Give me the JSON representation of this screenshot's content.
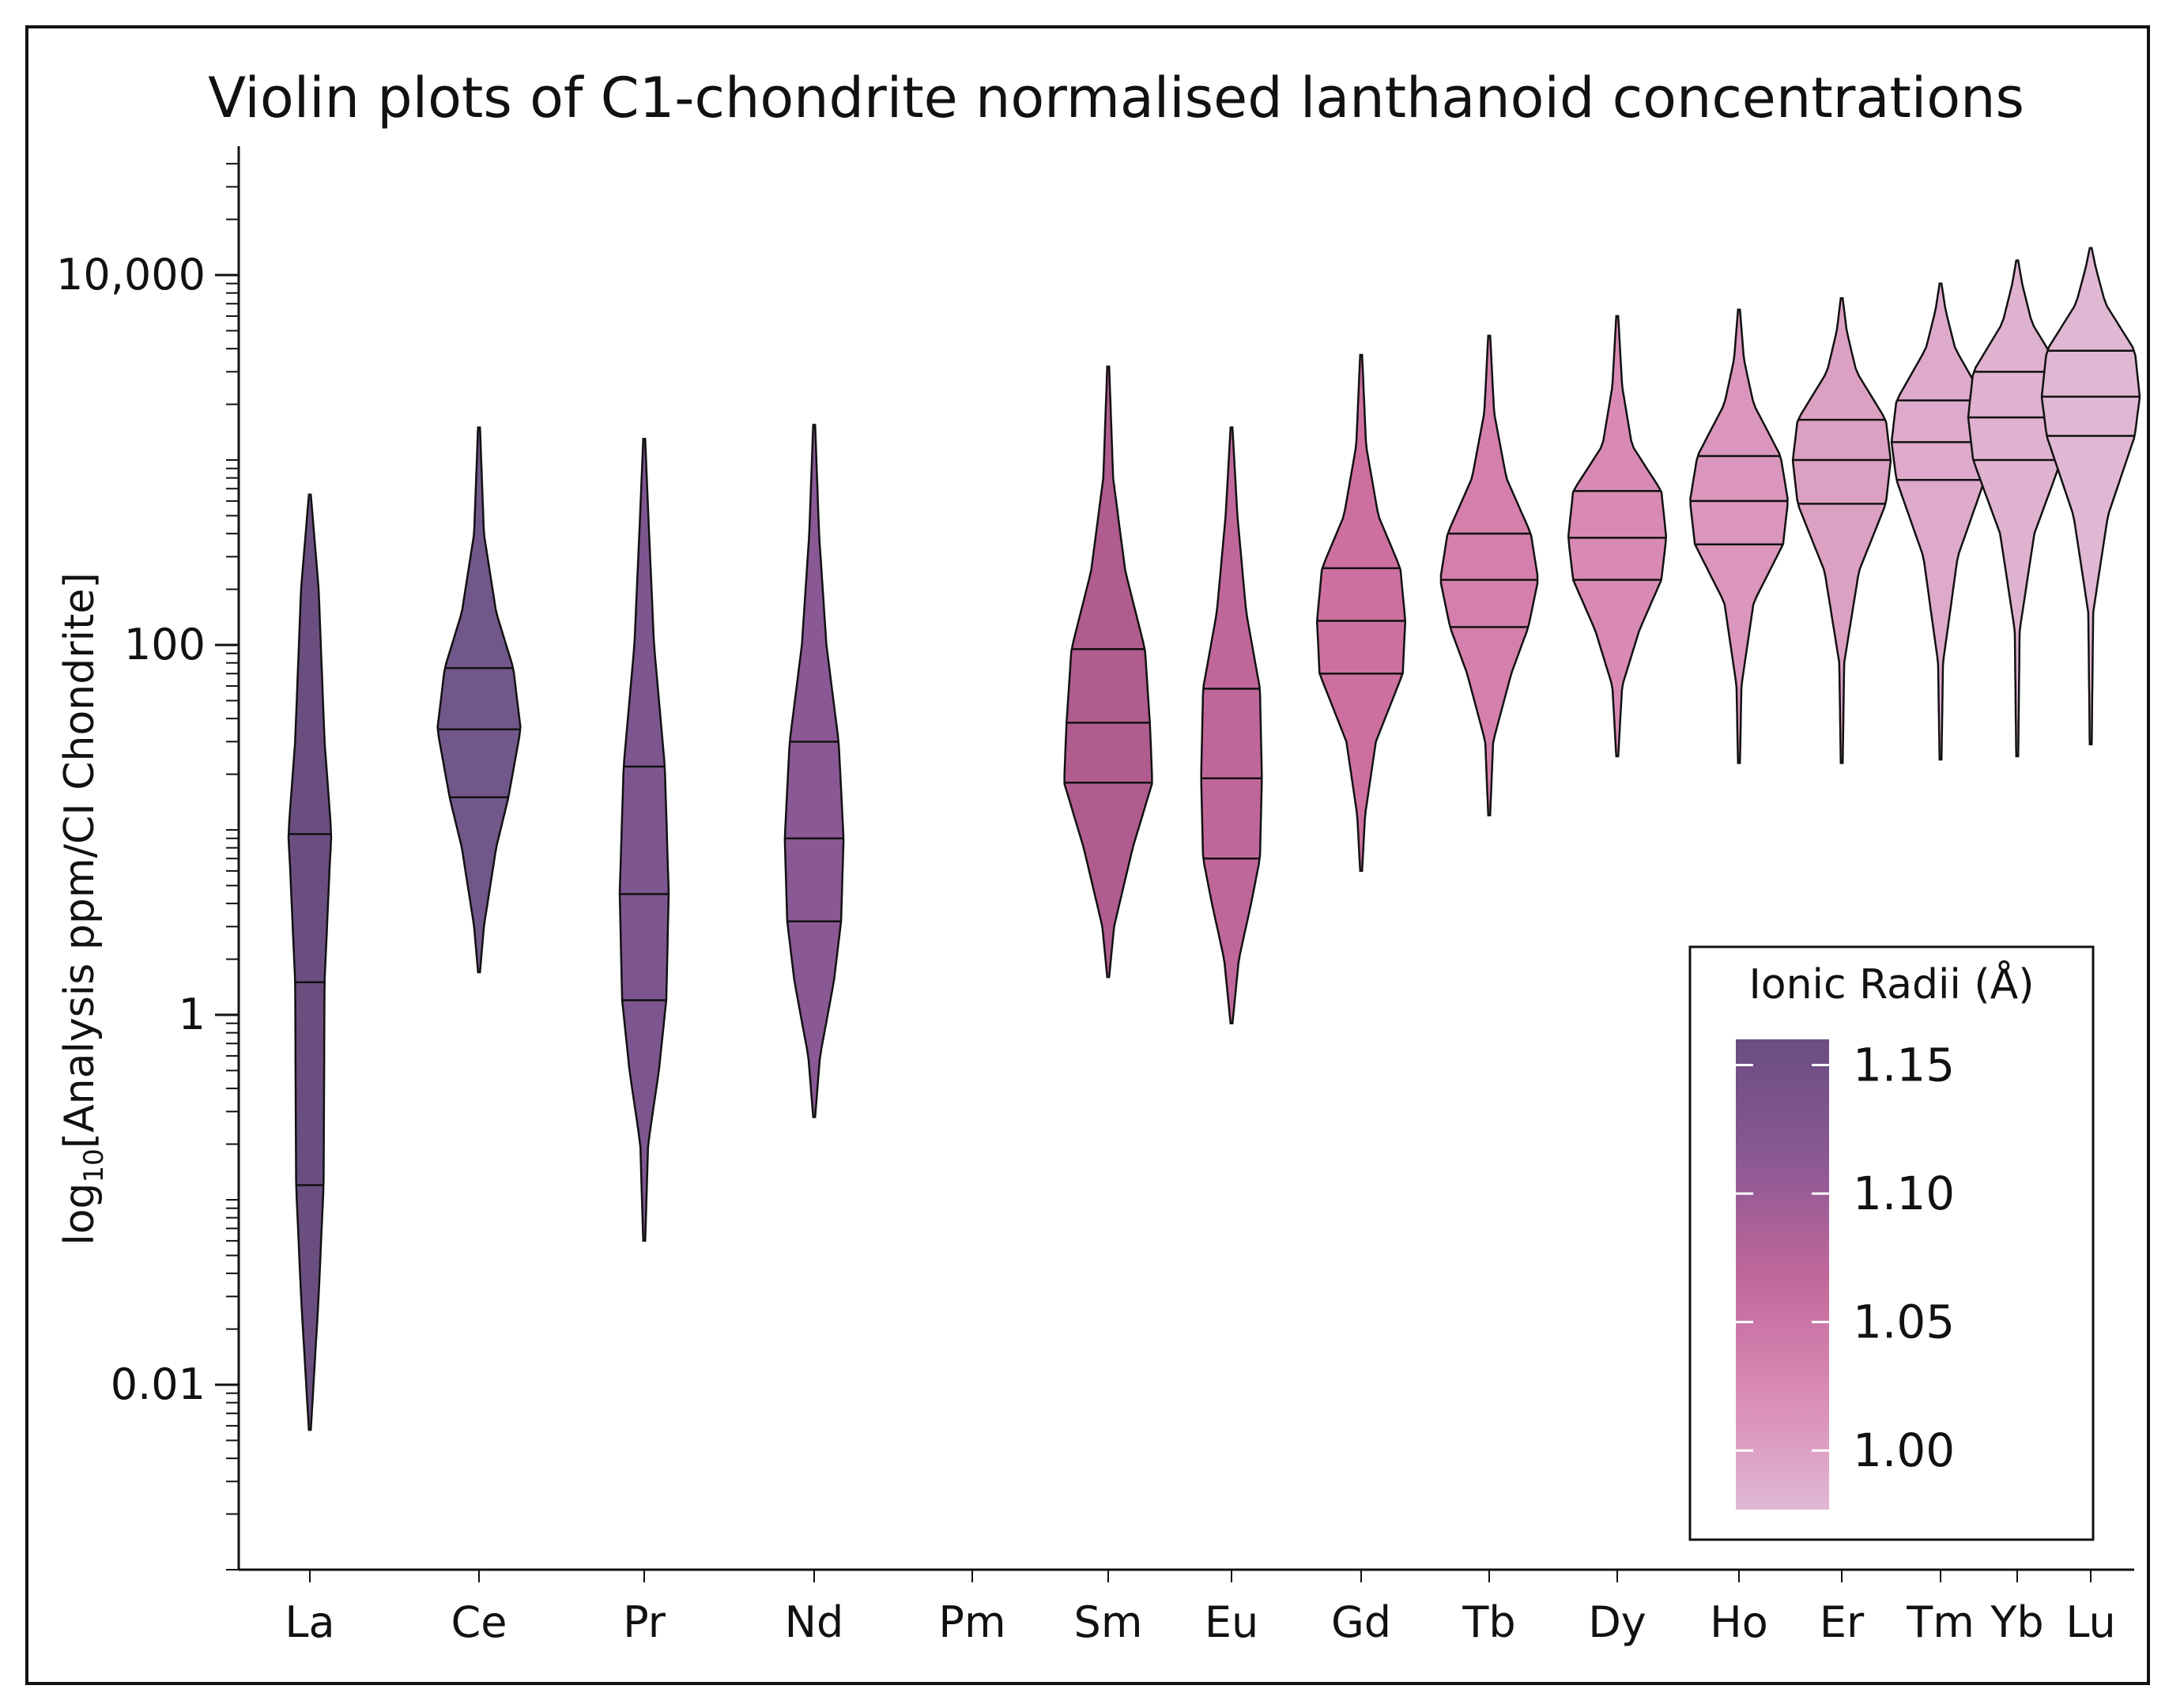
{
  "chart_data": {
    "type": "violin",
    "title": "Violin plots of C1-chondrite normalised lanthanoid concentrations",
    "ylabel_prefix": "log",
    "ylabel_subscript": "10",
    "ylabel_main": "[Analysis ppm/CI Chondrite]",
    "xlabel": "",
    "yscale": "log10",
    "ylim": [
      0.0008,
      50000
    ],
    "yticks": [
      {
        "value": 0.01,
        "label": "0.01"
      },
      {
        "value": 1,
        "label": "1"
      },
      {
        "value": 100,
        "label": "100"
      },
      {
        "value": 10000,
        "label": "10,000"
      }
    ],
    "categories": [
      "La",
      "Ce",
      "Pr",
      "Nd",
      "Pm",
      "Sm",
      "Eu",
      "Gd",
      "Tb",
      "Dy",
      "Ho",
      "Er",
      "Tm",
      "Yb",
      "Lu"
    ],
    "violins": [
      {
        "element": "La",
        "ionic_radius": 1.16,
        "color": "#6a4e80",
        "min": 0.0057,
        "max": 650,
        "q1": 0.12,
        "median": 1.5,
        "q3": 9.5,
        "shape": [
          [
            0.0057,
            0.02
          ],
          [
            0.03,
            0.18
          ],
          [
            0.12,
            0.28
          ],
          [
            1.5,
            0.3
          ],
          [
            6,
            0.4
          ],
          [
            9.5,
            0.44
          ],
          [
            30,
            0.3
          ],
          [
            200,
            0.18
          ],
          [
            650,
            0.02
          ]
        ]
      },
      {
        "element": "Ce",
        "ionic_radius": 1.143,
        "color": "#72578a",
        "min": 1.7,
        "max": 1500,
        "q1": 15,
        "median": 35,
        "q3": 75,
        "shape": [
          [
            1.7,
            0.02
          ],
          [
            3,
            0.1
          ],
          [
            8,
            0.35
          ],
          [
            15,
            0.6
          ],
          [
            35,
            0.85
          ],
          [
            75,
            0.7
          ],
          [
            150,
            0.35
          ],
          [
            400,
            0.1
          ],
          [
            1500,
            0.02
          ]
        ]
      },
      {
        "element": "Pr",
        "ionic_radius": 1.126,
        "color": "#7d5690",
        "min": 0.06,
        "max": 1300,
        "q1": 1.2,
        "median": 4.5,
        "q3": 22,
        "shape": [
          [
            0.06,
            0.02
          ],
          [
            0.2,
            0.08
          ],
          [
            0.5,
            0.3
          ],
          [
            1.2,
            0.45
          ],
          [
            4.5,
            0.5
          ],
          [
            22,
            0.42
          ],
          [
            100,
            0.2
          ],
          [
            400,
            0.1
          ],
          [
            1300,
            0.02
          ]
        ]
      },
      {
        "element": "Nd",
        "ionic_radius": 1.109,
        "color": "#8a5895",
        "min": 0.28,
        "max": 1550,
        "q1": 3.2,
        "median": 9,
        "q3": 30,
        "shape": [
          [
            0.28,
            0.02
          ],
          [
            0.6,
            0.12
          ],
          [
            1.5,
            0.4
          ],
          [
            3.2,
            0.55
          ],
          [
            9,
            0.6
          ],
          [
            30,
            0.5
          ],
          [
            100,
            0.25
          ],
          [
            400,
            0.1
          ],
          [
            1550,
            0.02
          ]
        ]
      },
      {
        "element": "Sm",
        "ionic_radius": 1.079,
        "color": "#b05c8e",
        "min": 1.6,
        "max": 3200,
        "q1": 18,
        "median": 38,
        "q3": 95,
        "shape": [
          [
            1.6,
            0.02
          ],
          [
            3,
            0.12
          ],
          [
            8,
            0.5
          ],
          [
            18,
            0.9
          ],
          [
            38,
            0.85
          ],
          [
            95,
            0.75
          ],
          [
            250,
            0.35
          ],
          [
            800,
            0.1
          ],
          [
            3200,
            0.02
          ]
        ]
      },
      {
        "element": "Eu",
        "ionic_radius": 1.066,
        "color": "#c0679a",
        "min": 0.9,
        "max": 1500,
        "q1": 7,
        "median": 19,
        "q3": 58,
        "shape": [
          [
            0.9,
            0.02
          ],
          [
            2,
            0.15
          ],
          [
            4,
            0.4
          ],
          [
            7,
            0.58
          ],
          [
            19,
            0.62
          ],
          [
            58,
            0.58
          ],
          [
            150,
            0.3
          ],
          [
            500,
            0.12
          ],
          [
            1500,
            0.02
          ]
        ]
      },
      {
        "element": "Gd",
        "ionic_radius": 1.053,
        "color": "#cd70a0",
        "min": 6,
        "max": 3700,
        "q1": 70,
        "median": 135,
        "q3": 260,
        "shape": [
          [
            6,
            0.02
          ],
          [
            12,
            0.08
          ],
          [
            30,
            0.3
          ],
          [
            70,
            0.85
          ],
          [
            135,
            0.9
          ],
          [
            260,
            0.8
          ],
          [
            500,
            0.35
          ],
          [
            1200,
            0.1
          ],
          [
            3700,
            0.02
          ]
        ]
      },
      {
        "element": "Tb",
        "ionic_radius": 1.04,
        "color": "#d57fad",
        "min": 12,
        "max": 4700,
        "q1": 125,
        "median": 225,
        "q3": 400,
        "shape": [
          [
            12,
            0.02
          ],
          [
            30,
            0.08
          ],
          [
            70,
            0.45
          ],
          [
            125,
            0.8
          ],
          [
            225,
            1.0
          ],
          [
            400,
            0.85
          ],
          [
            800,
            0.35
          ],
          [
            1800,
            0.1
          ],
          [
            4700,
            0.02
          ]
        ]
      },
      {
        "element": "Dy",
        "ionic_radius": 1.027,
        "color": "#d88ab5",
        "min": 25,
        "max": 6000,
        "q1": 225,
        "median": 380,
        "q3": 680,
        "shape": [
          [
            25,
            0.02
          ],
          [
            60,
            0.1
          ],
          [
            120,
            0.45
          ],
          [
            225,
            0.9
          ],
          [
            380,
            1.0
          ],
          [
            680,
            0.9
          ],
          [
            1200,
            0.3
          ],
          [
            2500,
            0.1
          ],
          [
            6000,
            0.02
          ]
        ]
      },
      {
        "element": "Ho",
        "ionic_radius": 1.015,
        "color": "#da96bc",
        "min": 23,
        "max": 6500,
        "q1": 350,
        "median": 600,
        "q3": 1050,
        "shape": [
          [
            23,
            0.02
          ],
          [
            60,
            0.05
          ],
          [
            170,
            0.3
          ],
          [
            350,
            0.9
          ],
          [
            600,
            1.0
          ],
          [
            1050,
            0.85
          ],
          [
            2000,
            0.3
          ],
          [
            3500,
            0.1
          ],
          [
            6500,
            0.02
          ]
        ]
      },
      {
        "element": "Er",
        "ionic_radius": 1.004,
        "color": "#dca0c2",
        "min": 23,
        "max": 7500,
        "q1": 580,
        "median": 1000,
        "q3": 1650,
        "shape": [
          [
            23,
            0.02
          ],
          [
            80,
            0.05
          ],
          [
            250,
            0.35
          ],
          [
            580,
            0.9
          ],
          [
            1000,
            1.0
          ],
          [
            1650,
            0.9
          ],
          [
            3000,
            0.3
          ],
          [
            5000,
            0.1
          ],
          [
            7500,
            0.02
          ]
        ]
      },
      {
        "element": "Tm",
        "ionic_radius": 0.994,
        "color": "#ddaacb",
        "min": 24,
        "max": 9000,
        "q1": 780,
        "median": 1250,
        "q3": 2100,
        "shape": [
          [
            24,
            0.02
          ],
          [
            80,
            0.05
          ],
          [
            300,
            0.35
          ],
          [
            780,
            0.9
          ],
          [
            1250,
            1.0
          ],
          [
            2100,
            0.9
          ],
          [
            4000,
            0.3
          ],
          [
            6500,
            0.1
          ],
          [
            9000,
            0.02
          ]
        ]
      },
      {
        "element": "Yb",
        "ionic_radius": 0.985,
        "color": "#dfb2cf",
        "min": 25,
        "max": 12000,
        "q1": 1000,
        "median": 1700,
        "q3": 3000,
        "shape": [
          [
            25,
            0.02
          ],
          [
            120,
            0.05
          ],
          [
            400,
            0.35
          ],
          [
            1000,
            0.9
          ],
          [
            1700,
            1.0
          ],
          [
            3000,
            0.9
          ],
          [
            5500,
            0.3
          ],
          [
            9000,
            0.1
          ],
          [
            12000,
            0.02
          ]
        ]
      },
      {
        "element": "Lu",
        "ionic_radius": 0.977,
        "color": "#e0b8d3",
        "min": 29,
        "max": 14000,
        "q1": 1350,
        "median": 2200,
        "q3": 3900,
        "shape": [
          [
            29,
            0.02
          ],
          [
            150,
            0.05
          ],
          [
            500,
            0.35
          ],
          [
            1350,
            0.9
          ],
          [
            2200,
            1.0
          ],
          [
            3900,
            0.9
          ],
          [
            7000,
            0.3
          ],
          [
            11000,
            0.1
          ],
          [
            14000,
            0.02
          ]
        ]
      }
    ],
    "legend": {
      "title": "Ionic Radii (Å)",
      "range": [
        0.977,
        1.16
      ],
      "ticks": [
        {
          "value": 1.15,
          "label": "1.15"
        },
        {
          "value": 1.1,
          "label": "1.10"
        },
        {
          "value": 1.05,
          "label": "1.05"
        },
        {
          "value": 1.0,
          "label": "1.00"
        }
      ],
      "gradient_top": "#6a4e80",
      "gradient_mid1": "#8a5895",
      "gradient_mid2": "#c0679a",
      "gradient_mid3": "#d98ab6",
      "gradient_bottom": "#e0b8d3",
      "placement": "bottom-right"
    }
  }
}
